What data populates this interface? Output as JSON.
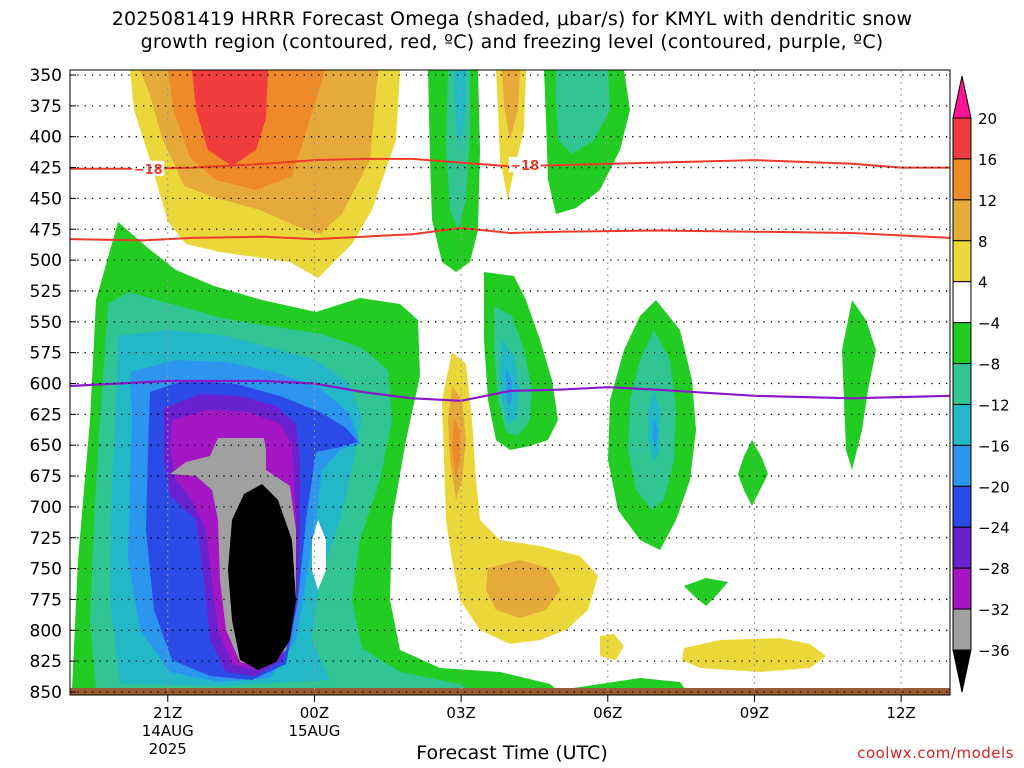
{
  "title_line1": "2025081419 HRRR Forecast Omega (shaded, μbar/s) for KMYL with dendritic snow",
  "title_line2": "growth region (contoured, red, ºC) and freezing level (contoured, purple, ºC)",
  "credit": "coolwx.com/models",
  "chart_data": {
    "type": "heatmap",
    "xlabel": "Forecast Time (UTC)",
    "ylabel": "",
    "y_ticks": [
      350,
      375,
      400,
      425,
      450,
      475,
      500,
      525,
      550,
      575,
      600,
      625,
      650,
      675,
      700,
      725,
      750,
      775,
      800,
      825,
      850
    ],
    "x_ticks": [
      {
        "label": "21Z",
        "sub": [
          "14AUG",
          "2025"
        ],
        "hour": 21
      },
      {
        "label": "00Z",
        "sub": [
          "15AUG"
        ],
        "hour": 24
      },
      {
        "label": "03Z",
        "sub": [],
        "hour": 27
      },
      {
        "label": "06Z",
        "sub": [],
        "hour": 30
      },
      {
        "label": "09Z",
        "sub": [],
        "hour": 33
      },
      {
        "label": "12Z",
        "sub": [],
        "hour": 36
      }
    ],
    "xlim": [
      19,
      37
    ],
    "ylim": [
      850,
      350
    ],
    "colorbar": {
      "labels": [
        "20",
        "16",
        "12",
        "8",
        "4",
        "−4",
        "−8",
        "−12",
        "−16",
        "−20",
        "−24",
        "−28",
        "−32",
        "−36"
      ],
      "colors": [
        "#ff1493",
        "#f03c3c",
        "#ee8a28",
        "#e6aa3a",
        "#ebd73a",
        "#ffffff",
        "#22cc22",
        "#33c493",
        "#22b8c8",
        "#2c96ee",
        "#2c4ae6",
        "#6a22d0",
        "#a416c4",
        "#a0a0a0",
        "#000000"
      ]
    },
    "contours": {
      "dgz_label": "−18",
      "dgz_top": [
        [
          19,
          426
        ],
        [
          20.5,
          426
        ],
        [
          21.5,
          425
        ],
        [
          23,
          422
        ],
        [
          24,
          419
        ],
        [
          25,
          418
        ],
        [
          26,
          418
        ],
        [
          27,
          421
        ],
        [
          28,
          424
        ],
        [
          29,
          423
        ],
        [
          31,
          421
        ],
        [
          33,
          419
        ],
        [
          35,
          422
        ],
        [
          36,
          425
        ],
        [
          37,
          425
        ]
      ],
      "dgz_bottom": [
        [
          19,
          483
        ],
        [
          20.5,
          484
        ],
        [
          21.5,
          482
        ],
        [
          23,
          481
        ],
        [
          24,
          483
        ],
        [
          25,
          481
        ],
        [
          26,
          479
        ],
        [
          27,
          474
        ],
        [
          28,
          478
        ],
        [
          29,
          477
        ],
        [
          31,
          476
        ],
        [
          33,
          477
        ],
        [
          35,
          478
        ],
        [
          37,
          482
        ]
      ],
      "freezing_level": [
        [
          19,
          602
        ],
        [
          21,
          598
        ],
        [
          23,
          598
        ],
        [
          24,
          600
        ],
        [
          25,
          607
        ],
        [
          26,
          612
        ],
        [
          27,
          614
        ],
        [
          28,
          606
        ],
        [
          29,
          605
        ],
        [
          30,
          603
        ],
        [
          31,
          605
        ],
        [
          33,
          610
        ],
        [
          35,
          612
        ],
        [
          37,
          610
        ]
      ]
    }
  }
}
